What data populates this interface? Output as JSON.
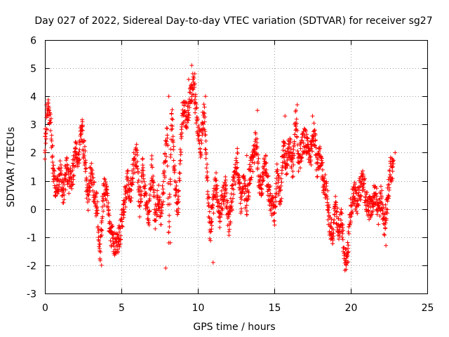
{
  "chart_data": {
    "type": "scatter",
    "title": "Day 027 of 2022, Sidereal Day-to-day VTEC variation (SDTVAR) for receiver sg27",
    "xlabel": "GPS time / hours",
    "ylabel": "SDTVAR / TECUs",
    "xlim": [
      0,
      25
    ],
    "ylim": [
      -3,
      6
    ],
    "xticks": [
      0,
      5,
      10,
      15,
      20,
      25
    ],
    "yticks": [
      -3,
      -2,
      -1,
      0,
      1,
      2,
      3,
      4,
      5,
      6
    ],
    "grid": true,
    "marker": "+",
    "color": "#ff0000",
    "series": [
      {
        "name": "SDTVAR",
        "trend": [
          [
            0.0,
            2.2
          ],
          [
            0.2,
            3.6
          ],
          [
            0.4,
            2.8
          ],
          [
            0.6,
            1.0
          ],
          [
            0.8,
            0.6
          ],
          [
            1.0,
            1.4
          ],
          [
            1.2,
            0.4
          ],
          [
            1.4,
            1.5
          ],
          [
            1.6,
            0.9
          ],
          [
            1.8,
            1.2
          ],
          [
            2.0,
            2.0
          ],
          [
            2.2,
            1.6
          ],
          [
            2.4,
            2.9
          ],
          [
            2.6,
            1.9
          ],
          [
            2.8,
            0.2
          ],
          [
            3.0,
            1.3
          ],
          [
            3.2,
            0.6
          ],
          [
            3.4,
            0.1
          ],
          [
            3.6,
            -1.7
          ],
          [
            3.8,
            0.4
          ],
          [
            4.0,
            0.9
          ],
          [
            4.2,
            -0.6
          ],
          [
            4.4,
            -1.0
          ],
          [
            4.6,
            -1.3
          ],
          [
            4.8,
            -1.2
          ],
          [
            5.0,
            -0.6
          ],
          [
            5.2,
            0.3
          ],
          [
            5.4,
            1.0
          ],
          [
            5.6,
            0.5
          ],
          [
            5.8,
            1.6
          ],
          [
            6.0,
            1.9
          ],
          [
            6.2,
            0.0
          ],
          [
            6.4,
            1.5
          ],
          [
            6.6,
            0.2
          ],
          [
            6.8,
            -0.4
          ],
          [
            7.0,
            1.6
          ],
          [
            7.2,
            -0.4
          ],
          [
            7.4,
            0.5
          ],
          [
            7.6,
            -0.3
          ],
          [
            7.8,
            1.3
          ],
          [
            8.0,
            2.8
          ],
          [
            8.1,
            -1.1
          ],
          [
            8.3,
            3.5
          ],
          [
            8.5,
            1.0
          ],
          [
            8.7,
            0.0
          ],
          [
            9.0,
            3.5
          ],
          [
            9.3,
            3.3
          ],
          [
            9.6,
            4.2
          ],
          [
            9.7,
            4.6
          ],
          [
            10.0,
            2.8
          ],
          [
            10.2,
            2.2
          ],
          [
            10.4,
            3.5
          ],
          [
            10.6,
            1.4
          ],
          [
            10.8,
            -0.8
          ],
          [
            11.0,
            0.2
          ],
          [
            11.2,
            1.0
          ],
          [
            11.4,
            -0.3
          ],
          [
            11.6,
            0.4
          ],
          [
            11.8,
            0.8
          ],
          [
            12.0,
            -0.6
          ],
          [
            12.2,
            0.3
          ],
          [
            12.4,
            1.1
          ],
          [
            12.6,
            1.8
          ],
          [
            12.8,
            0.2
          ],
          [
            13.0,
            1.0
          ],
          [
            13.2,
            0.1
          ],
          [
            13.4,
            1.3
          ],
          [
            13.6,
            1.6
          ],
          [
            13.8,
            2.5
          ],
          [
            14.0,
            1.0
          ],
          [
            14.2,
            0.9
          ],
          [
            14.4,
            1.8
          ],
          [
            14.6,
            0.8
          ],
          [
            14.8,
            0.2
          ],
          [
            15.0,
            -0.3
          ],
          [
            15.2,
            1.3
          ],
          [
            15.4,
            0.3
          ],
          [
            15.6,
            2.3
          ],
          [
            15.8,
            1.6
          ],
          [
            16.0,
            2.4
          ],
          [
            16.2,
            1.4
          ],
          [
            16.4,
            3.4
          ],
          [
            16.6,
            1.6
          ],
          [
            16.8,
            2.2
          ],
          [
            17.0,
            2.5
          ],
          [
            17.2,
            2.1
          ],
          [
            17.4,
            1.9
          ],
          [
            17.6,
            2.8
          ],
          [
            17.8,
            1.4
          ],
          [
            18.0,
            2.0
          ],
          [
            18.2,
            1.0
          ],
          [
            18.4,
            0.7
          ],
          [
            18.6,
            -0.5
          ],
          [
            18.8,
            -0.9
          ],
          [
            19.0,
            0.1
          ],
          [
            19.2,
            -0.7
          ],
          [
            19.4,
            -0.3
          ],
          [
            19.6,
            -1.8
          ],
          [
            19.8,
            -1.6
          ],
          [
            20.0,
            0.1
          ],
          [
            20.2,
            0.6
          ],
          [
            20.4,
            0.2
          ],
          [
            20.6,
            0.7
          ],
          [
            20.8,
            1.0
          ],
          [
            21.0,
            0.4
          ],
          [
            21.2,
            0.0
          ],
          [
            21.4,
            0.2
          ],
          [
            21.6,
            0.6
          ],
          [
            21.8,
            -0.2
          ],
          [
            22.0,
            0.5
          ],
          [
            22.2,
            -0.6
          ],
          [
            22.4,
            0.3
          ],
          [
            22.6,
            1.4
          ],
          [
            22.8,
            1.3
          ]
        ],
        "outliers": [
          [
            0.1,
            3.7
          ],
          [
            0.15,
            3.3
          ],
          [
            2.45,
            3.1
          ],
          [
            3.7,
            -2.0
          ],
          [
            7.9,
            -2.1
          ],
          [
            8.2,
            -1.2
          ],
          [
            8.1,
            4.0
          ],
          [
            9.4,
            4.6
          ],
          [
            9.6,
            5.1
          ],
          [
            9.8,
            4.8
          ],
          [
            10.5,
            4.0
          ],
          [
            11.0,
            -1.9
          ],
          [
            13.2,
            1.9
          ],
          [
            13.9,
            3.5
          ],
          [
            15.7,
            3.3
          ],
          [
            16.5,
            3.7
          ],
          [
            17.5,
            3.3
          ],
          [
            19.7,
            -2.0
          ],
          [
            22.3,
            -1.3
          ],
          [
            22.9,
            2.0
          ]
        ],
        "spread": 0.45,
        "sample_step_hours": 0.0333
      }
    ]
  }
}
